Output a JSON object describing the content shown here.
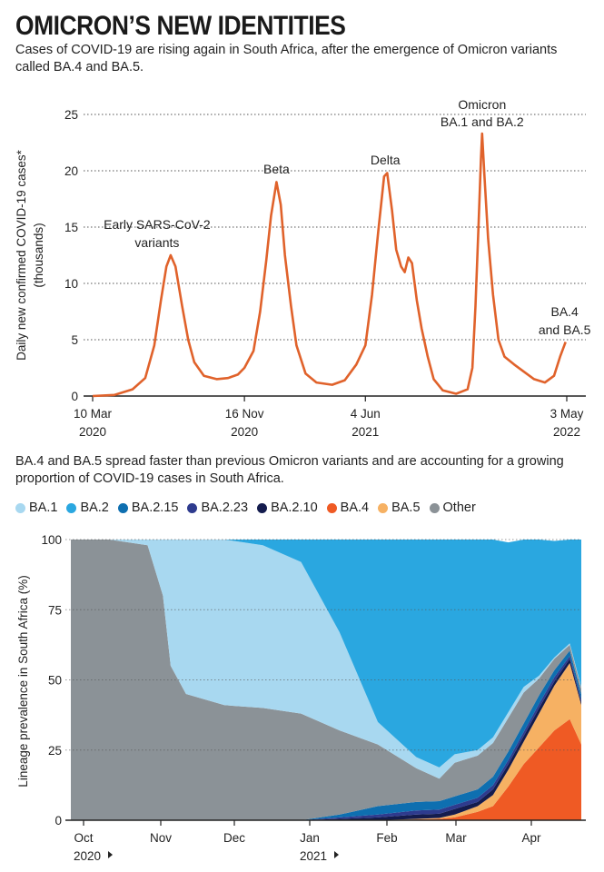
{
  "title": "OMICRON’S NEW IDENTITIES",
  "subtitle": "Cases of COVID-19 are rising again in South Africa, after the emergence of Omicron variants called BA.4 and BA.5.",
  "subtitle2": "BA.4 and BA.5 spread faster than previous Omicron variants and are accounting for a growing proportion of COVID-19 cases in South Africa.",
  "colors": {
    "cases_line": "#e0622b",
    "BA.1": "#a8d8f0",
    "BA.2": "#2aa7e0",
    "BA.2.15": "#0e6fb0",
    "BA.2.23": "#2e3b8e",
    "BA.2.10": "#141c4e",
    "BA.4": "#ef5a24",
    "BA.5": "#f6b163",
    "Other": "#8b9297"
  },
  "chart_data": [
    {
      "type": "line",
      "title": "",
      "ylabel": "Daily new confirmed COVID-19 cases* (thousands)",
      "xlabel": "",
      "ylim": [
        0,
        25
      ],
      "yticks": [
        "0",
        "5",
        "10",
        "15",
        "20",
        "25"
      ],
      "xticks": [
        {
          "line1": "10 Mar",
          "line2": "2020"
        },
        {
          "line1": "16 Nov",
          "line2": "2020"
        },
        {
          "line1": "4 Jun",
          "line2": "2021"
        },
        {
          "line1": "3 May",
          "line2": "2022"
        }
      ],
      "x_start": "2020-03-10",
      "x_end": "2022-05-03",
      "grid": true,
      "series": [
        {
          "values": [
            [
              "2020-03-10",
              0.0
            ],
            [
              "2020-04-15",
              0.1
            ],
            [
              "2020-05-15",
              0.6
            ],
            [
              "2020-06-05",
              1.6
            ],
            [
              "2020-06-20",
              4.5
            ],
            [
              "2020-07-01",
              8.5
            ],
            [
              "2020-07-10",
              11.5
            ],
            [
              "2020-07-17",
              12.5
            ],
            [
              "2020-07-25",
              11.5
            ],
            [
              "2020-08-05",
              8.0
            ],
            [
              "2020-08-15",
              5.0
            ],
            [
              "2020-08-25",
              3.0
            ],
            [
              "2020-09-10",
              1.8
            ],
            [
              "2020-10-01",
              1.5
            ],
            [
              "2020-10-20",
              1.6
            ],
            [
              "2020-11-05",
              1.9
            ],
            [
              "2020-11-16",
              2.5
            ],
            [
              "2020-12-01",
              4.0
            ],
            [
              "2020-12-12",
              7.5
            ],
            [
              "2020-12-22",
              12.0
            ],
            [
              "2020-12-30",
              16.0
            ],
            [
              "2021-01-08",
              19.0
            ],
            [
              "2021-01-15",
              17.0
            ],
            [
              "2021-01-22",
              12.5
            ],
            [
              "2021-02-01",
              8.0
            ],
            [
              "2021-02-10",
              4.5
            ],
            [
              "2021-02-25",
              2.0
            ],
            [
              "2021-03-15",
              1.2
            ],
            [
              "2021-04-10",
              1.0
            ],
            [
              "2021-05-01",
              1.4
            ],
            [
              "2021-05-20",
              2.8
            ],
            [
              "2021-06-04",
              4.5
            ],
            [
              "2021-06-15",
              9.0
            ],
            [
              "2021-06-25",
              14.5
            ],
            [
              "2021-07-05",
              19.5
            ],
            [
              "2021-07-10",
              19.8
            ],
            [
              "2021-07-18",
              16.5
            ],
            [
              "2021-07-25",
              13.0
            ],
            [
              "2021-08-02",
              11.5
            ],
            [
              "2021-08-08",
              11.0
            ],
            [
              "2021-08-14",
              12.3
            ],
            [
              "2021-08-20",
              11.8
            ],
            [
              "2021-08-28",
              8.5
            ],
            [
              "2021-09-05",
              6.0
            ],
            [
              "2021-09-15",
              3.5
            ],
            [
              "2021-09-25",
              1.5
            ],
            [
              "2021-10-10",
              0.5
            ],
            [
              "2021-11-01",
              0.2
            ],
            [
              "2021-11-20",
              0.6
            ],
            [
              "2021-11-28",
              2.5
            ],
            [
              "2021-12-03",
              8.0
            ],
            [
              "2021-12-08",
              15.0
            ],
            [
              "2021-12-12",
              21.0
            ],
            [
              "2021-12-14",
              23.3
            ],
            [
              "2021-12-18",
              19.5
            ],
            [
              "2021-12-24",
              14.0
            ],
            [
              "2022-01-01",
              9.0
            ],
            [
              "2022-01-10",
              5.0
            ],
            [
              "2022-01-20",
              3.5
            ],
            [
              "2022-02-05",
              2.8
            ],
            [
              "2022-02-20",
              2.2
            ],
            [
              "2022-03-10",
              1.5
            ],
            [
              "2022-03-28",
              1.2
            ],
            [
              "2022-04-12",
              1.8
            ],
            [
              "2022-04-22",
              3.5
            ],
            [
              "2022-05-01",
              4.8
            ]
          ]
        }
      ],
      "annotations": [
        {
          "lines": [
            "Early SARS-CoV-2",
            "variants"
          ],
          "date": "2020-07-17"
        },
        {
          "lines": [
            "Beta"
          ],
          "date": "2021-01-08"
        },
        {
          "lines": [
            "Delta"
          ],
          "date": "2021-07-07"
        },
        {
          "lines": [
            "Omicron",
            "BA.1 and BA.2"
          ],
          "date": "2021-12-14"
        },
        {
          "lines": [
            "BA.4",
            "and BA.5"
          ],
          "date": "2022-05-01"
        }
      ]
    },
    {
      "type": "area",
      "title": "",
      "ylabel": "Lineage prevalence in South Africa (%)",
      "xlabel": "",
      "ylim": [
        0,
        100
      ],
      "yticks": [
        "0",
        "25",
        "50",
        "75",
        "100"
      ],
      "xticks": [
        {
          "line1": "Oct",
          "line2": "2020"
        },
        {
          "line1": "Nov",
          "line2": ""
        },
        {
          "line1": "Dec",
          "line2": ""
        },
        {
          "line1": "Jan",
          "line2": "2021"
        },
        {
          "line1": "Feb",
          "line2": ""
        },
        {
          "line1": "Mar",
          "line2": ""
        },
        {
          "line1": "Apr",
          "line2": ""
        }
      ],
      "legend_position": "top",
      "x": [
        0,
        0.5,
        1.0,
        1.2,
        1.3,
        1.5,
        2.0,
        2.5,
        3.0,
        3.5,
        4.0,
        4.5,
        4.8,
        5.0,
        5.3,
        5.5,
        5.7,
        5.9,
        6.1,
        6.3,
        6.5,
        6.65
      ],
      "series": [
        {
          "name": "BA.4",
          "values": [
            0,
            0,
            0,
            0,
            0,
            0,
            0,
            0,
            0,
            0,
            0,
            0.3,
            0.5,
            1,
            3,
            5,
            12,
            20,
            26,
            32,
            36,
            27
          ]
        },
        {
          "name": "BA.5",
          "values": [
            0,
            0,
            0,
            0,
            0,
            0,
            0,
            0,
            0,
            0,
            0,
            0.2,
            0.3,
            1,
            2,
            4,
            6,
            8,
            12,
            16,
            20,
            14
          ]
        },
        {
          "name": "BA.2.10",
          "values": [
            0,
            0,
            0,
            0,
            0,
            0,
            0,
            0,
            0,
            0.5,
            1,
            1.5,
            1.5,
            2,
            1.5,
            2,
            2,
            2,
            2,
            1.5,
            1.5,
            1
          ]
        },
        {
          "name": "BA.2.23",
          "values": [
            0,
            0,
            0,
            0,
            0,
            0,
            0,
            0,
            0,
            0.5,
            1,
            1.5,
            1.5,
            1.5,
            1.5,
            1.5,
            1.5,
            1.5,
            1.5,
            1.5,
            1,
            1
          ]
        },
        {
          "name": "BA.2.15",
          "values": [
            0,
            0,
            0,
            0,
            0,
            0,
            0,
            0,
            0,
            1,
            3,
            3,
            3,
            3,
            3,
            3,
            3,
            3,
            3,
            2.5,
            2,
            2
          ]
        },
        {
          "name": "Other",
          "values": [
            100,
            100,
            98,
            80,
            55,
            45,
            41,
            40,
            38,
            30,
            22,
            12,
            8,
            12,
            12,
            12,
            12,
            11,
            6,
            4,
            2,
            2
          ]
        },
        {
          "name": "BA.1",
          "values": [
            0,
            0,
            2,
            20,
            45,
            55,
            59,
            58,
            54,
            35,
            8,
            4,
            4,
            3,
            2,
            2,
            2,
            2,
            1,
            0.5,
            0.5,
            0.5
          ]
        },
        {
          "name": "BA.2",
          "values": [
            0,
            0,
            0,
            0,
            0,
            0,
            0,
            2,
            8,
            33,
            65,
            77.5,
            81.2,
            76.5,
            75,
            70.5,
            60.5,
            52.5,
            48.5,
            41.5,
            37,
            52.5
          ]
        }
      ]
    }
  ],
  "legend": [
    {
      "name": "BA.1",
      "color": "#a8d8f0"
    },
    {
      "name": "BA.2",
      "color": "#2aa7e0"
    },
    {
      "name": "BA.2.15",
      "color": "#0e6fb0"
    },
    {
      "name": "BA.2.23",
      "color": "#2e3b8e"
    },
    {
      "name": "BA.2.10",
      "color": "#141c4e"
    },
    {
      "name": "BA.4",
      "color": "#ef5a24"
    },
    {
      "name": "BA.5",
      "color": "#f6b163"
    },
    {
      "name": "Other",
      "color": "#8b9297"
    }
  ]
}
